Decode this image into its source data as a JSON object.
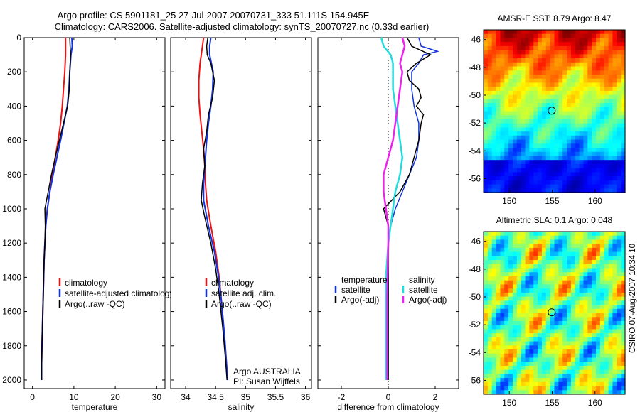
{
  "title": {
    "line1": "Argo profile: CS 5901181_25 27-Jul-2007 20070731_333 51.111S 154.945E",
    "line2": "Climatology: CARS2006. Satellite-adjusted climatology: synTS_20070727.nc (0.33d earlier)"
  },
  "colors": {
    "red": "#ee1111",
    "blue": "#1133dd",
    "black": "#000000",
    "cyan": "#22dddd",
    "magenta": "#ee22ee"
  },
  "chart_data": [
    {
      "type": "line",
      "id": "temperature",
      "xlabel": "temperature",
      "xlim": [
        -2,
        32
      ],
      "ylim": [
        2050,
        0
      ],
      "xticks": [
        "0",
        "10",
        "20",
        "30"
      ],
      "xtick_values": [
        0,
        10,
        20,
        30
      ],
      "yticks": [
        "0",
        "200",
        "400",
        "600",
        "800",
        "1000",
        "1200",
        "1400",
        "1600",
        "1800",
        "2000"
      ],
      "ytick_values": [
        0,
        200,
        400,
        600,
        800,
        1000,
        1200,
        1400,
        1600,
        1800,
        2000
      ],
      "legend": {
        "position": "lower-right",
        "items": [
          {
            "label": "climatology",
            "color": "red"
          },
          {
            "label": "satellite-adjusted climatology",
            "color": "blue"
          },
          {
            "label": "Argo(..raw -QC)",
            "color": "black"
          }
        ]
      },
      "series": [
        {
          "name": "climatology",
          "color": "red",
          "width": 2,
          "points": [
            [
              8,
              0
            ],
            [
              8,
              100
            ],
            [
              7.8,
              200
            ],
            [
              7.5,
              300
            ],
            [
              7.2,
              400
            ],
            [
              6.8,
              500
            ],
            [
              6.2,
              600
            ],
            [
              5.5,
              700
            ],
            [
              4.8,
              800
            ],
            [
              4.2,
              900
            ],
            [
              3.6,
              1000
            ],
            [
              3.2,
              1100
            ],
            [
              3,
              1200
            ],
            [
              2.8,
              1300
            ],
            [
              2.7,
              1400
            ],
            [
              2.6,
              1500
            ],
            [
              2.5,
              1600
            ],
            [
              2.4,
              1700
            ],
            [
              2.3,
              1800
            ],
            [
              2.2,
              1900
            ],
            [
              2.2,
              2000
            ]
          ]
        },
        {
          "name": "satellite-adjusted climatology",
          "color": "blue",
          "width": 2,
          "points": [
            [
              9.5,
              0
            ],
            [
              9.6,
              50
            ],
            [
              9.3,
              100
            ],
            [
              9,
              200
            ],
            [
              8.8,
              300
            ],
            [
              8.4,
              400
            ],
            [
              7.6,
              500
            ],
            [
              6.8,
              600
            ],
            [
              5.9,
              700
            ],
            [
              5,
              800
            ],
            [
              4.2,
              900
            ],
            [
              3.6,
              1000
            ],
            [
              3.2,
              1100
            ],
            [
              3,
              1200
            ],
            [
              2.8,
              1300
            ],
            [
              2.7,
              1400
            ],
            [
              2.6,
              1500
            ],
            [
              2.5,
              1600
            ],
            [
              2.4,
              1700
            ],
            [
              2.3,
              1800
            ],
            [
              2.2,
              1900
            ],
            [
              2.2,
              2000
            ]
          ]
        },
        {
          "name": "Argo(..raw -QC)",
          "color": "black",
          "width": 1.5,
          "points": [
            [
              9,
              0
            ],
            [
              9.2,
              100
            ],
            [
              9,
              200
            ],
            [
              8.9,
              300
            ],
            [
              8.5,
              400
            ],
            [
              7.5,
              500
            ],
            [
              6.5,
              600
            ],
            [
              5.5,
              700
            ],
            [
              4.6,
              800
            ],
            [
              3.8,
              900
            ],
            [
              3,
              1000
            ],
            [
              3.1,
              1100
            ],
            [
              3,
              1200
            ],
            [
              2.8,
              1300
            ],
            [
              2.7,
              1400
            ],
            [
              2.6,
              1500
            ],
            [
              2.5,
              1600
            ],
            [
              2.4,
              1700
            ],
            [
              2.3,
              1800
            ],
            [
              2.2,
              1900
            ],
            [
              2.2,
              2000
            ]
          ]
        }
      ]
    },
    {
      "type": "line",
      "id": "salinity",
      "xlabel": "salinity",
      "xlim": [
        33.75,
        36.1
      ],
      "ylim": [
        2050,
        0
      ],
      "xticks": [
        "34",
        "34.5",
        "35",
        "35.5",
        "36"
      ],
      "xtick_values": [
        34,
        34.5,
        35,
        35.5,
        36
      ],
      "legend": {
        "position": "lower-right",
        "items": [
          {
            "label": "climatology",
            "color": "red"
          },
          {
            "label": "satellite adj. clim.",
            "color": "blue"
          },
          {
            "label": "Argo(..raw -QC)",
            "color": "black"
          }
        ]
      },
      "annotation": [
        "Argo AUSTRALIA",
        "PI: Susan Wijffels"
      ],
      "series": [
        {
          "name": "climatology",
          "color": "red",
          "width": 2,
          "points": [
            [
              34.3,
              0
            ],
            [
              34.28,
              50
            ],
            [
              34.24,
              150
            ],
            [
              34.22,
              250
            ],
            [
              34.22,
              350
            ],
            [
              34.24,
              450
            ],
            [
              34.27,
              550
            ],
            [
              34.3,
              650
            ],
            [
              34.32,
              750
            ],
            [
              34.33,
              850
            ],
            [
              34.35,
              950
            ],
            [
              34.42,
              1100
            ],
            [
              34.5,
              1250
            ],
            [
              34.56,
              1400
            ],
            [
              34.6,
              1550
            ],
            [
              34.65,
              1750
            ],
            [
              34.68,
              1900
            ],
            [
              34.7,
              2000
            ]
          ]
        },
        {
          "name": "satellite adj. clim.",
          "color": "blue",
          "width": 2,
          "points": [
            [
              34.42,
              0
            ],
            [
              34.4,
              50
            ],
            [
              34.4,
              100
            ],
            [
              34.46,
              200
            ],
            [
              34.45,
              300
            ],
            [
              34.42,
              400
            ],
            [
              34.38,
              500
            ],
            [
              34.35,
              600
            ],
            [
              34.33,
              700
            ],
            [
              34.3,
              850
            ],
            [
              34.3,
              950
            ],
            [
              34.38,
              1100
            ],
            [
              34.48,
              1250
            ],
            [
              34.55,
              1400
            ],
            [
              34.6,
              1550
            ],
            [
              34.65,
              1750
            ],
            [
              34.68,
              1900
            ],
            [
              34.7,
              2000
            ]
          ]
        },
        {
          "name": "Argo(..raw -QC)",
          "color": "black",
          "width": 1.5,
          "points": [
            [
              34.37,
              0
            ],
            [
              34.35,
              50
            ],
            [
              34.36,
              100
            ],
            [
              34.42,
              150
            ],
            [
              34.48,
              250
            ],
            [
              34.45,
              350
            ],
            [
              34.38,
              450
            ],
            [
              34.35,
              550
            ],
            [
              34.3,
              650
            ],
            [
              34.32,
              750
            ],
            [
              34.28,
              850
            ],
            [
              34.26,
              950
            ],
            [
              34.32,
              1050
            ],
            [
              34.42,
              1200
            ],
            [
              34.5,
              1350
            ],
            [
              34.56,
              1500
            ],
            [
              34.62,
              1700
            ],
            [
              34.67,
              1900
            ],
            [
              34.69,
              2000
            ]
          ]
        }
      ]
    },
    {
      "type": "line",
      "id": "difference",
      "xlabel": "difference from climatology",
      "xlim": [
        -3,
        3
      ],
      "ylim": [
        2050,
        0
      ],
      "xticks": [
        "-2",
        "0",
        "2"
      ],
      "xtick_values": [
        -2,
        0,
        2
      ],
      "legend": {
        "position": "lower-center",
        "headers": [
          "temperature",
          "salinity"
        ],
        "items": [
          {
            "label": "satellite",
            "color": "blue",
            "col": 0
          },
          {
            "label": "Argo(-adj)",
            "color": "black",
            "col": 0
          },
          {
            "label": "satellite",
            "color": "cyan",
            "col": 1
          },
          {
            "label": "Argo(-adj)",
            "color": "magenta",
            "col": 1
          }
        ]
      },
      "series": [
        {
          "name": "temperature satellite",
          "color": "blue",
          "width": 1.5,
          "points": [
            [
              1.3,
              0
            ],
            [
              1.4,
              50
            ],
            [
              2.1,
              80
            ],
            [
              1.5,
              100
            ],
            [
              1.3,
              150
            ],
            [
              1,
              200
            ],
            [
              1,
              300
            ],
            [
              1.1,
              400
            ],
            [
              1.3,
              500
            ],
            [
              1.3,
              600
            ],
            [
              1.2,
              700
            ],
            [
              0.9,
              800
            ],
            [
              0.6,
              900
            ],
            [
              0.3,
              1000
            ],
            [
              0.1,
              1100
            ],
            [
              0,
              1200
            ],
            [
              0,
              2000
            ]
          ]
        },
        {
          "name": "temperature Argo(-adj)",
          "color": "black",
          "width": 1.5,
          "points": [
            [
              0.8,
              0
            ],
            [
              1,
              50
            ],
            [
              1.8,
              100
            ],
            [
              1.2,
              150
            ],
            [
              0.8,
              200
            ],
            [
              0.9,
              250
            ],
            [
              1.3,
              300
            ],
            [
              1.4,
              350
            ],
            [
              1.2,
              400
            ],
            [
              1.5,
              450
            ],
            [
              1.4,
              500
            ],
            [
              1.3,
              600
            ],
            [
              1.1,
              700
            ],
            [
              0.9,
              800
            ],
            [
              0.5,
              900
            ],
            [
              -0.2,
              1000
            ],
            [
              0,
              1100
            ],
            [
              0,
              1200
            ],
            [
              0,
              2000
            ]
          ]
        },
        {
          "name": "salinity satellite",
          "color": "cyan",
          "width": 2.5,
          "points": [
            [
              -0.3,
              0
            ],
            [
              -0.2,
              50
            ],
            [
              0.1,
              100
            ],
            [
              0.2,
              150
            ],
            [
              0.2,
              200
            ],
            [
              0.2,
              300
            ],
            [
              0.3,
              400
            ],
            [
              0.4,
              500
            ],
            [
              0.5,
              600
            ],
            [
              0.6,
              700
            ],
            [
              0.5,
              800
            ],
            [
              0.3,
              900
            ],
            [
              0.2,
              1000
            ],
            [
              0.1,
              1100
            ],
            [
              0,
              1200
            ],
            [
              -0.1,
              1400
            ],
            [
              -0.1,
              2000
            ]
          ]
        },
        {
          "name": "salinity Argo(-adj)",
          "color": "magenta",
          "width": 2.5,
          "points": [
            [
              0.6,
              0
            ],
            [
              0.7,
              50
            ],
            [
              0.6,
              100
            ],
            [
              0.5,
              150
            ],
            [
              0.6,
              200
            ],
            [
              0.5,
              300
            ],
            [
              0.4,
              400
            ],
            [
              0.3,
              500
            ],
            [
              0.2,
              600
            ],
            [
              0,
              700
            ],
            [
              -0.2,
              800
            ],
            [
              -0.2,
              900
            ],
            [
              -0.1,
              1000
            ],
            [
              0,
              1100
            ],
            [
              0,
              1200
            ],
            [
              -0.05,
              1500
            ],
            [
              -0.05,
              2000
            ]
          ]
        }
      ]
    },
    {
      "type": "heatmap",
      "id": "sst-map",
      "title": "AMSR-E SST: 8.79 Argo: 8.47",
      "xlim": [
        147,
        163.5
      ],
      "ylim": [
        -57,
        -45.3
      ],
      "xticks": [
        "150",
        "155",
        "160"
      ],
      "xtick_values": [
        150,
        155,
        160
      ],
      "yticks": [
        "-46",
        "-48",
        "-50",
        "-52",
        "-54",
        "-56"
      ],
      "ytick_values": [
        -46,
        -48,
        -50,
        -52,
        -54,
        -56
      ],
      "marker": {
        "lon": 154.945,
        "lat": -51.111
      }
    },
    {
      "type": "heatmap",
      "id": "sla-map",
      "title": "Altimetric SLA: 0.1 Argo: 0.048",
      "xlim": [
        147,
        163.5
      ],
      "ylim": [
        -57,
        -45.3
      ],
      "xticks": [
        "150",
        "155",
        "160"
      ],
      "xtick_values": [
        150,
        155,
        160
      ],
      "yticks": [
        "-46",
        "-48",
        "-50",
        "-52",
        "-54",
        "-56"
      ],
      "ytick_values": [
        -46,
        -48,
        -50,
        -52,
        -54,
        -56
      ],
      "marker": {
        "lon": 154.945,
        "lat": -51.111
      }
    }
  ],
  "footer": {
    "timestamp": "CSIRO 07-Aug-2007 10:34:10"
  }
}
